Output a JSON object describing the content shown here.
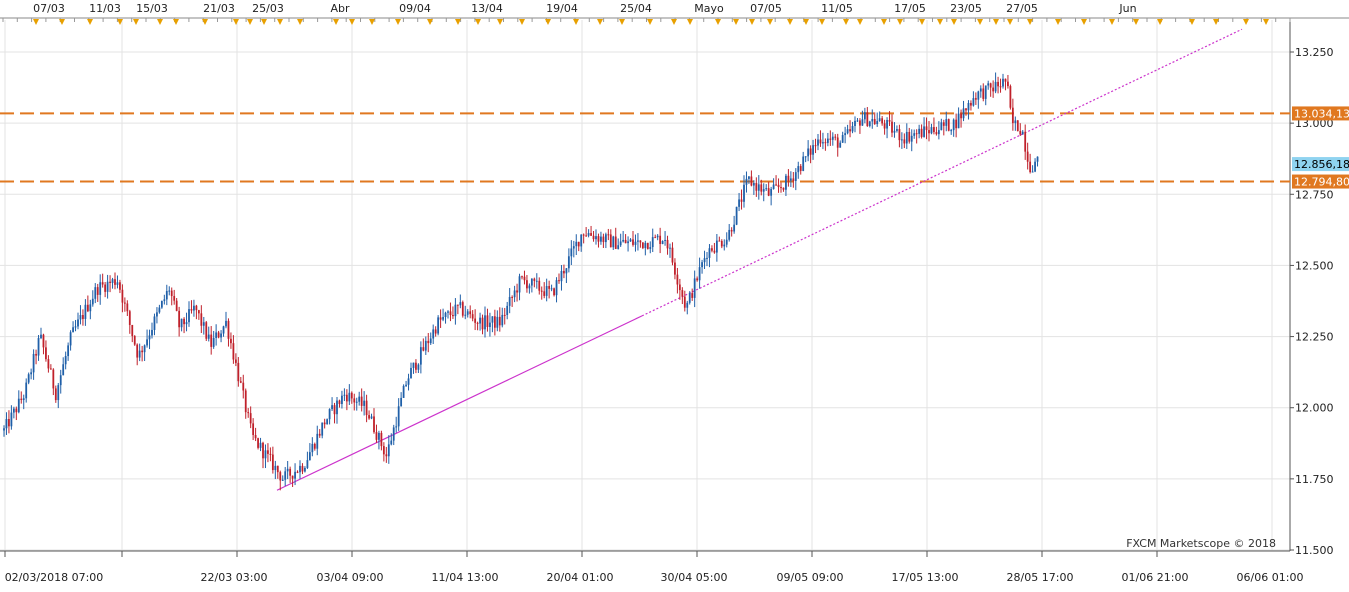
{
  "app": {
    "watermark": "FXCM Marketscope © 2018"
  },
  "colors": {
    "bull": "#1f5fa8",
    "bear": "#c0202a",
    "level_line": "#e07820",
    "trendline": "#cc33cc",
    "current_price_bg": "#8fd3f0",
    "grid": "#e3e3e3",
    "event_marker": "#e8a000"
  },
  "top_axis": {
    "labels": [
      "07/03",
      "11/03",
      "15/03",
      "21/03",
      "25/03",
      "Abr",
      "09/04",
      "13/04",
      "19/04",
      "25/04",
      "Mayo",
      "07/05",
      "11/05",
      "17/05",
      "23/05",
      "27/05",
      "Jun"
    ]
  },
  "bottom_axis": {
    "labels": [
      "02/03/2018 07:00",
      "22/03 03:00",
      "03/04 09:00",
      "11/04 13:00",
      "20/04 01:00",
      "30/04 05:00",
      "09/05 09:00",
      "17/05 13:00",
      "28/05 17:00",
      "01/06 21:00",
      "06/06 01:00"
    ]
  },
  "price_axis": {
    "ticks": [
      "13.250",
      "13.000",
      "12.750",
      "12.500",
      "12.250",
      "12.000",
      "11.750",
      "11.500"
    ]
  },
  "price_tags": {
    "upper_level": "13.034,13",
    "current": "12.856,18",
    "lower_level": "12.794,80"
  },
  "chart_data": {
    "type": "candlestick",
    "y_range": [
      11.5,
      13.35
    ],
    "y_ticks": [
      11.5,
      11.75,
      12.0,
      12.25,
      12.5,
      12.75,
      13.0,
      13.25
    ],
    "horizontal_levels": [
      13.03413,
      12.7948
    ],
    "current_price": 12.85618,
    "trendline": {
      "start": {
        "bar": 0.23,
        "value": 11.71
      },
      "end": {
        "bar": 1.0,
        "value": 13.33
      }
    },
    "anchors": [
      {
        "t": 0.0,
        "v": 11.92
      },
      {
        "t": 0.02,
        "v": 12.05
      },
      {
        "t": 0.035,
        "v": 12.25
      },
      {
        "t": 0.05,
        "v": 12.05
      },
      {
        "t": 0.065,
        "v": 12.25
      },
      {
        "t": 0.09,
        "v": 12.42
      },
      {
        "t": 0.11,
        "v": 12.45
      },
      {
        "t": 0.13,
        "v": 12.18
      },
      {
        "t": 0.16,
        "v": 12.42
      },
      {
        "t": 0.17,
        "v": 12.28
      },
      {
        "t": 0.185,
        "v": 12.35
      },
      {
        "t": 0.2,
        "v": 12.22
      },
      {
        "t": 0.215,
        "v": 12.3
      },
      {
        "t": 0.24,
        "v": 11.9
      },
      {
        "t": 0.27,
        "v": 11.75
      },
      {
        "t": 0.29,
        "v": 11.8
      },
      {
        "t": 0.31,
        "v": 11.95
      },
      {
        "t": 0.33,
        "v": 12.05
      },
      {
        "t": 0.35,
        "v": 12.0
      },
      {
        "t": 0.37,
        "v": 11.83
      },
      {
        "t": 0.39,
        "v": 12.1
      },
      {
        "t": 0.42,
        "v": 12.3
      },
      {
        "t": 0.44,
        "v": 12.35
      },
      {
        "t": 0.46,
        "v": 12.3
      },
      {
        "t": 0.48,
        "v": 12.3
      },
      {
        "t": 0.5,
        "v": 12.45
      },
      {
        "t": 0.53,
        "v": 12.4
      },
      {
        "t": 0.56,
        "v": 12.62
      },
      {
        "t": 0.59,
        "v": 12.58
      },
      {
        "t": 0.62,
        "v": 12.58
      },
      {
        "t": 0.64,
        "v": 12.6
      },
      {
        "t": 0.66,
        "v": 12.35
      },
      {
        "t": 0.68,
        "v": 12.55
      },
      {
        "t": 0.7,
        "v": 12.6
      },
      {
        "t": 0.72,
        "v": 12.8
      },
      {
        "t": 0.74,
        "v": 12.75
      },
      {
        "t": 0.76,
        "v": 12.8
      },
      {
        "t": 0.79,
        "v": 12.95
      },
      {
        "t": 0.81,
        "v": 12.93
      },
      {
        "t": 0.83,
        "v": 13.02
      },
      {
        "t": 0.85,
        "v": 13.0
      },
      {
        "t": 0.87,
        "v": 12.95
      },
      {
        "t": 0.9,
        "v": 12.98
      },
      {
        "t": 0.92,
        "v": 13.0
      },
      {
        "t": 0.94,
        "v": 13.1
      },
      {
        "t": 0.955,
        "v": 13.12
      },
      {
        "t": 0.97,
        "v": 13.15
      },
      {
        "t": 0.975,
        "v": 13.0
      },
      {
        "t": 0.985,
        "v": 12.98
      },
      {
        "t": 0.992,
        "v": 12.85
      },
      {
        "t": 1.0,
        "v": 12.86
      }
    ]
  }
}
